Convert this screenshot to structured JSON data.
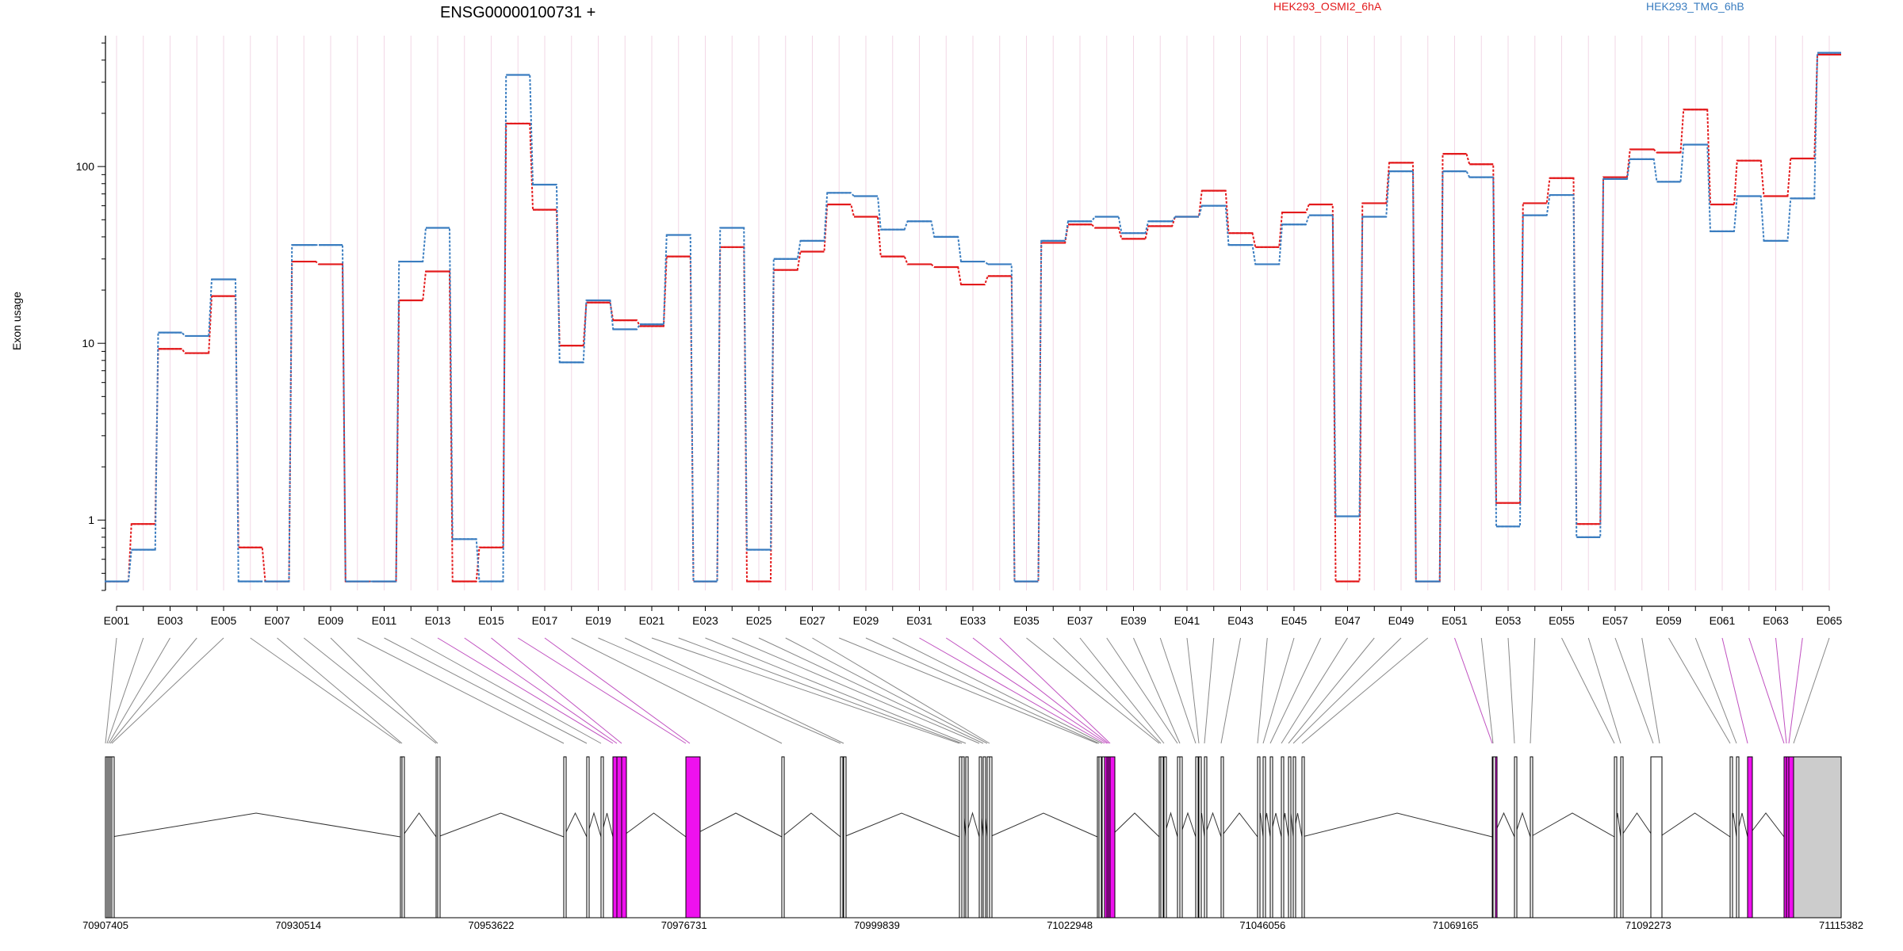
{
  "chart_data": {
    "type": "line",
    "title": "ENSG00000100731 +",
    "ylabel": "Exon usage",
    "xlabel": "",
    "y_scale": "log",
    "ylim": [
      0.4,
      550
    ],
    "y_ticks": [
      1,
      10,
      100
    ],
    "y_tick_labels": [
      "1",
      "10",
      "100"
    ],
    "categories": [
      "E001",
      "E002",
      "E003",
      "E004",
      "E005",
      "E006",
      "E007",
      "E008",
      "E009",
      "E010",
      "E011",
      "E012",
      "E013",
      "E014",
      "E015",
      "E016",
      "E017",
      "E018",
      "E019",
      "E020",
      "E021",
      "E022",
      "E023",
      "E024",
      "E025",
      "E026",
      "E027",
      "E028",
      "E029",
      "E030",
      "E031",
      "E032",
      "E033",
      "E034",
      "E035",
      "E036",
      "E037",
      "E038",
      "E039",
      "E040",
      "E041",
      "E042",
      "E043",
      "E044",
      "E045",
      "E046",
      "E047",
      "E048",
      "E049",
      "E050",
      "E051",
      "E052",
      "E053",
      "E054",
      "E055",
      "E056",
      "E057",
      "E058",
      "E059",
      "E060",
      "E061",
      "E062",
      "E063",
      "E064",
      "E065"
    ],
    "category_labels_shown": [
      "E001",
      "E003",
      "E005",
      "E007",
      "E009",
      "E011",
      "E013",
      "E015",
      "E017",
      "E019",
      "E021",
      "E023",
      "E025",
      "E027",
      "E029",
      "E031",
      "E033",
      "E035",
      "E037",
      "E039",
      "E041",
      "E043",
      "E045",
      "E047",
      "E049",
      "E051",
      "E053",
      "E055",
      "E057",
      "E059",
      "E061",
      "E063",
      "E065"
    ],
    "series": [
      {
        "name": "HEK293_OSMI2_6hA",
        "color": "#e31a1c",
        "style": "solid",
        "values": [
          0.45,
          0.95,
          9.3,
          8.8,
          18.5,
          0.7,
          0.45,
          29,
          28,
          0.45,
          0.45,
          17.5,
          25.5,
          0.45,
          0.7,
          175,
          57,
          9.7,
          17,
          13.5,
          12.5,
          31,
          0.45,
          35,
          0.45,
          26,
          33,
          61,
          52,
          31,
          28,
          27,
          21.5,
          24,
          0.45,
          37,
          47,
          45,
          39,
          46,
          52,
          73,
          42,
          35,
          55,
          61,
          0.45,
          62,
          105,
          0.45,
          118,
          103,
          1.25,
          62,
          86,
          0.95,
          87,
          125,
          120,
          210,
          61,
          108,
          68,
          111,
          430
        ]
      },
      {
        "name": "HEK293_TMG_6hB",
        "color": "#3a7dc0",
        "style": "dashed",
        "values": [
          0.45,
          0.68,
          11.5,
          11,
          23,
          0.45,
          0.45,
          36,
          36,
          0.45,
          0.45,
          29,
          45,
          0.78,
          0.45,
          330,
          79,
          7.8,
          17.5,
          12,
          12.8,
          41,
          0.45,
          45,
          0.68,
          30,
          38,
          71,
          68,
          44,
          49,
          40,
          29,
          28,
          0.45,
          38,
          49,
          52,
          42,
          49,
          52,
          60,
          36,
          28,
          47,
          53,
          1.05,
          52,
          94,
          0.45,
          94,
          87,
          0.92,
          53,
          69,
          0.8,
          85,
          110,
          82,
          133,
          43,
          68,
          38,
          66,
          440
        ]
      }
    ],
    "gene_model": {
      "coordinate_labels": [
        "70907405",
        "70930514",
        "70953622",
        "70976731",
        "70999839",
        "71022948",
        "71046056",
        "71069165",
        "71092273",
        "71115382"
      ],
      "range": [
        70907405,
        71115382
      ],
      "highlight_color": "#ee11ee",
      "highlighted_exons": [
        "E013",
        "E014",
        "E015",
        "E016",
        "E017",
        "E031",
        "E032",
        "E033",
        "E034",
        "E051",
        "E061",
        "E062",
        "E063",
        "E064"
      ],
      "last_exon_fill": "#cccccc"
    },
    "grid": "vertical-light",
    "legend_placement": "top"
  }
}
